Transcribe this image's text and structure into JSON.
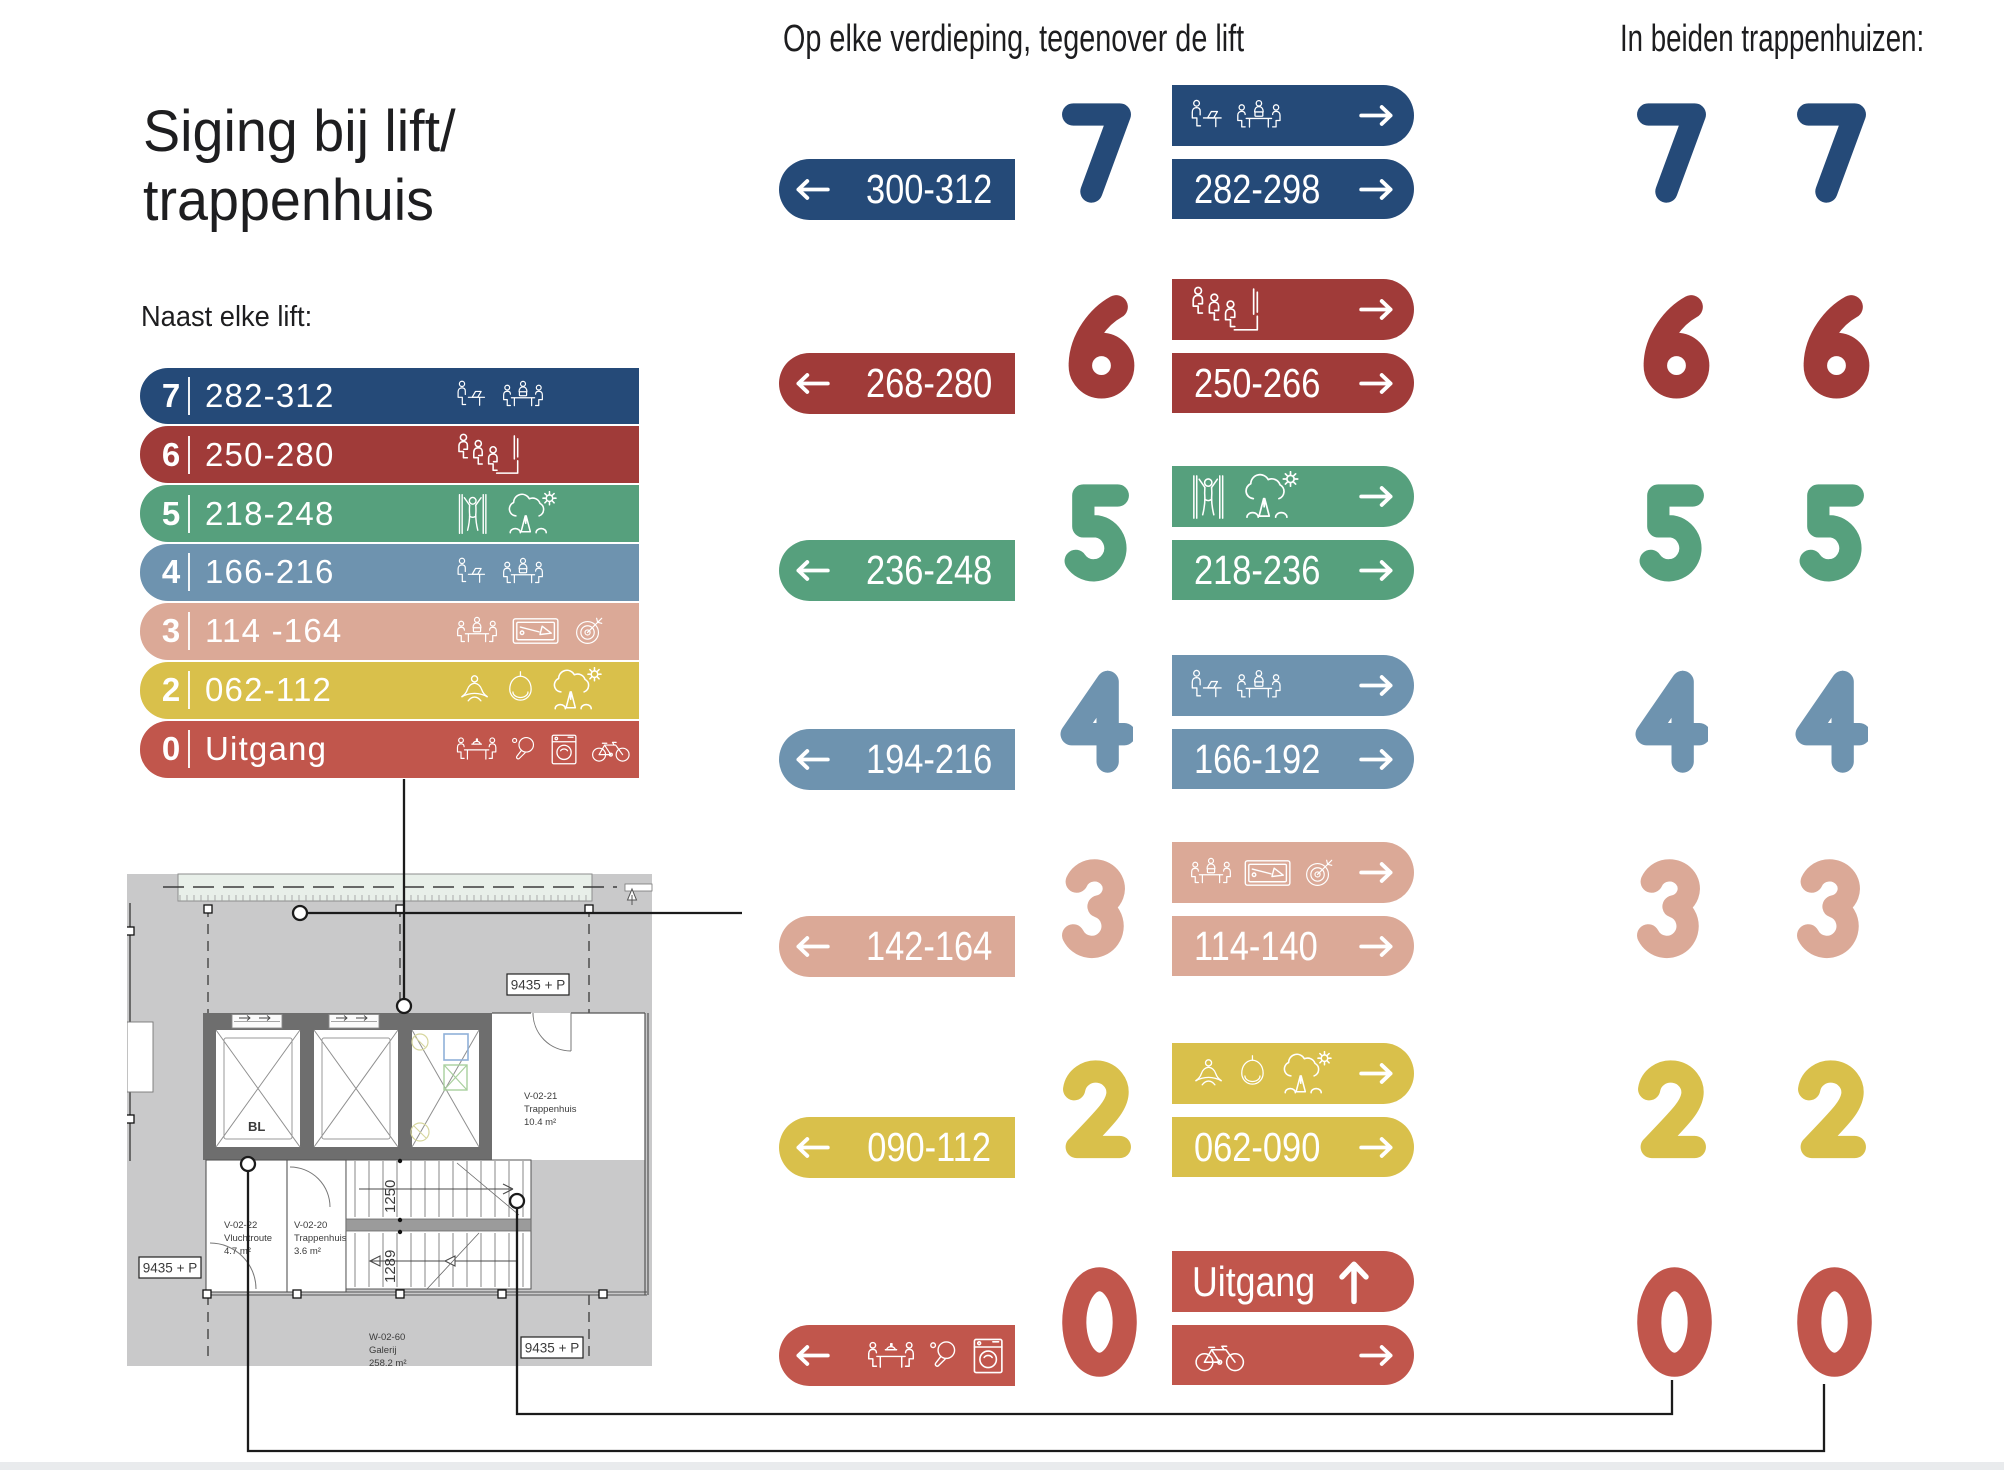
{
  "page": {
    "title_line1": "Siging bij lift/",
    "title_line2": "trappenhuis",
    "bottom_bar_color": "#e9ebed"
  },
  "left_panel": {
    "heading": "Naast elke lift:",
    "bars": [
      {
        "level": "7",
        "text": "282-312",
        "color": "#254a78",
        "icons": [
          "desk-laptop",
          "meeting-table"
        ]
      },
      {
        "level": "6",
        "text": "250-280",
        "color": "#a03b39",
        "icons": [
          "auditorium"
        ]
      },
      {
        "level": "5",
        "text": "218-248",
        "color": "#56a07d",
        "icons": [
          "pullup",
          "tree-sun"
        ]
      },
      {
        "level": "4",
        "text": "166-216",
        "color": "#6e93af",
        "icons": [
          "desk-laptop",
          "meeting-table"
        ]
      },
      {
        "level": "3",
        "text": "114 -164",
        "color": "#dba997",
        "icons": [
          "meeting-table",
          "billiards",
          "darts"
        ]
      },
      {
        "level": "2",
        "text": "062-112",
        "color": "#d9c04b",
        "icons": [
          "yoga",
          "hanging-chair",
          "tree-sun"
        ]
      },
      {
        "level": "0",
        "text": "Uitgang",
        "color": "#c1564c",
        "icons": [
          "dining-table",
          "table-tennis",
          "laundry",
          "bicycle"
        ]
      }
    ]
  },
  "middle_panel": {
    "heading": "Op elke verdieping, tegenover de lift",
    "rows": [
      {
        "level": "7",
        "color": "#254a78",
        "left_label": "300-312",
        "top_icons": [
          "desk-laptop",
          "meeting-table"
        ],
        "bottom_label": "282-298"
      },
      {
        "level": "6",
        "color": "#a03b39",
        "left_label": "268-280",
        "top_icons": [
          "auditorium"
        ],
        "bottom_label": "250-266"
      },
      {
        "level": "5",
        "color": "#56a07d",
        "left_label": "236-248",
        "top_icons": [
          "pullup",
          "tree-sun"
        ],
        "bottom_label": "218-236"
      },
      {
        "level": "4",
        "color": "#6e93af",
        "left_label": "194-216",
        "top_icons": [
          "desk-laptop",
          "meeting-table"
        ],
        "bottom_label": "166-192"
      },
      {
        "level": "3",
        "color": "#dba997",
        "left_label": "142-164",
        "top_icons": [
          "meeting-table",
          "billiards",
          "darts"
        ],
        "bottom_label": "114-140"
      },
      {
        "level": "2",
        "color": "#d9c04b",
        "left_label": "090-112",
        "top_icons": [
          "yoga",
          "hanging-chair",
          "tree-sun"
        ],
        "bottom_label": "062-090"
      },
      {
        "level": "0",
        "color": "#c1564c",
        "left_icons": [
          "dining-table",
          "table-tennis",
          "laundry"
        ],
        "top_label": "Uitgang",
        "bottom_icon": "bicycle"
      }
    ]
  },
  "right_panel": {
    "heading": "In beiden trappenhuizen:",
    "pairs": [
      {
        "level": "7",
        "color": "#254a78"
      },
      {
        "level": "6",
        "color": "#a03b39"
      },
      {
        "level": "5",
        "color": "#56a07d"
      },
      {
        "level": "4",
        "color": "#6e93af"
      },
      {
        "level": "3",
        "color": "#dba997"
      },
      {
        "level": "2",
        "color": "#d9c04b"
      },
      {
        "level": "0",
        "color": "#c1564c"
      }
    ]
  },
  "floorplan": {
    "labels": {
      "bl": "BL",
      "trappenhuis_21_a": "V-02-21",
      "trappenhuis_21_b": "Trappenhuis",
      "trappenhuis_21_c": "10.4 m²",
      "vluchtroute_a": "V-02-22",
      "vluchtroute_b": "Vluchtroute",
      "vluchtroute_c": "4.7 m²",
      "trappenhuis_20_a": "V-02-20",
      "trappenhuis_20_b": "Trappenhuis",
      "trappenhuis_20_c": "3.6 m²",
      "galerij_a": "W-02-60",
      "galerij_b": "Galerij",
      "galerij_c": "258.2 m²",
      "level_label_1": "9435 + P",
      "level_label_2": "9435 + P",
      "level_label_3": "9435 + P",
      "stair_dim_1": "1250",
      "stair_dim_2": "1289"
    }
  }
}
